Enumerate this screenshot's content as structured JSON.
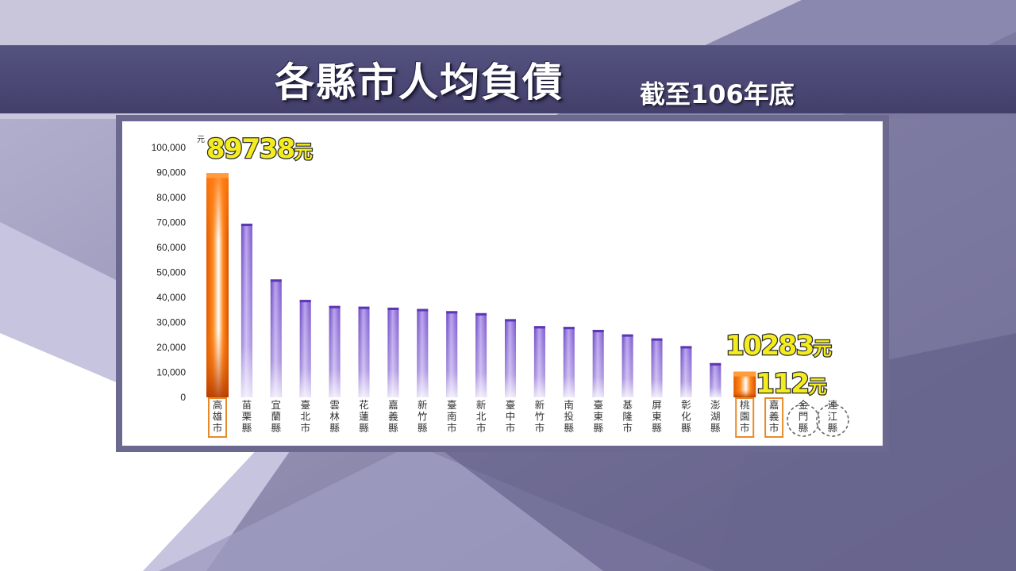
{
  "title": "各縣市人均負債",
  "subtitle": "截至106年底",
  "colors": {
    "bar_default": "#8f6ad6",
    "bar_highlight": "#ff6a00",
    "callout_text": "#f4ec1c",
    "highlight_box": "#e98a2a"
  },
  "chart_data": {
    "type": "bar",
    "y_unit": "元",
    "ylim": [
      0,
      100000
    ],
    "y_ticks": [
      "0",
      "10,000",
      "20,000",
      "30,000",
      "40,000",
      "50,000",
      "60,000",
      "70,000",
      "80,000",
      "90,000",
      "100,000"
    ],
    "categories": [
      "高雄市",
      "苗栗縣",
      "宜蘭縣",
      "臺北市",
      "雲林縣",
      "花蓮縣",
      "嘉義縣",
      "新竹縣",
      "臺南市",
      "新北市",
      "臺中市",
      "新竹市",
      "南投縣",
      "臺東縣",
      "基隆市",
      "屏東縣",
      "彰化縣",
      "澎湖縣",
      "桃園市",
      "嘉義市",
      "金門縣",
      "連江縣"
    ],
    "values": [
      89738,
      69500,
      47200,
      39000,
      36600,
      36300,
      35900,
      35400,
      34500,
      33700,
      31300,
      28500,
      28200,
      27000,
      25200,
      23600,
      20500,
      13700,
      10283,
      112,
      0,
      0
    ],
    "highlighted": [
      "高雄市",
      "桃園市",
      "嘉義市"
    ],
    "circled": [
      "金門縣",
      "連江縣"
    ],
    "callouts": [
      {
        "category": "高雄市",
        "number": "89738",
        "unit": "元"
      },
      {
        "category": "桃園市",
        "number": "10283",
        "unit": "元"
      },
      {
        "category": "嘉義市",
        "number": "112",
        "unit": "元"
      }
    ],
    "grid": false
  }
}
